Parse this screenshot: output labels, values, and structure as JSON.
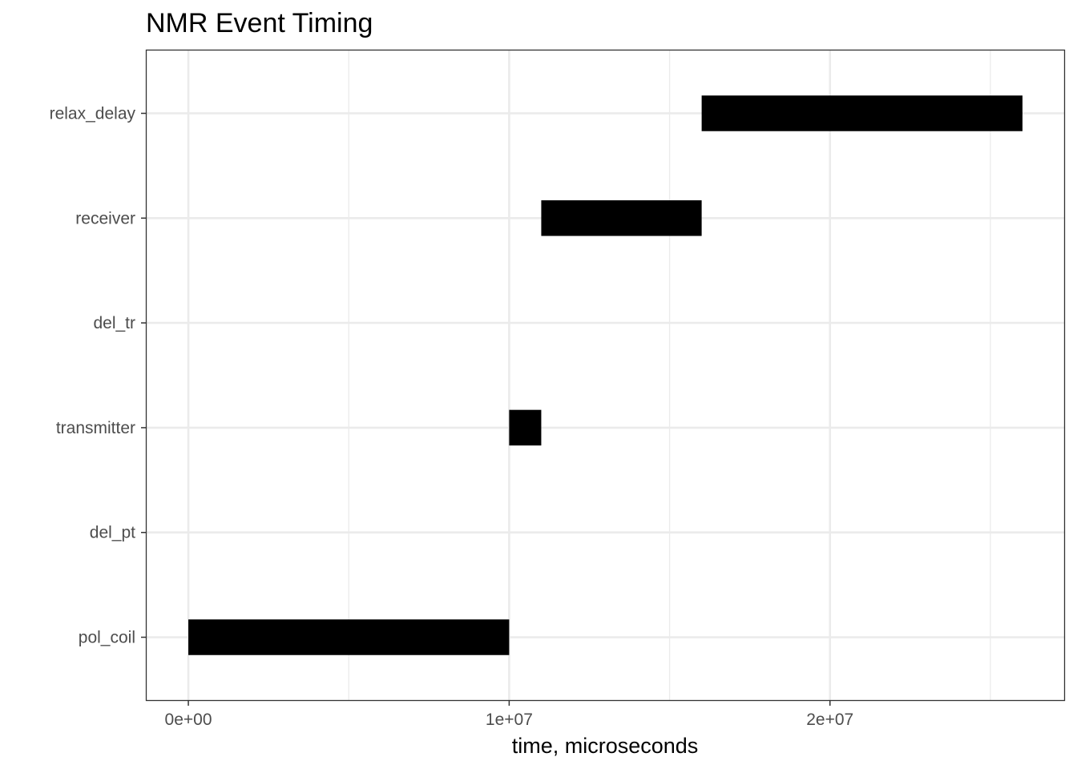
{
  "chart_data": {
    "type": "bar",
    "orientation": "horizontal",
    "title": "NMR Event Timing",
    "xlabel": "time, microseconds",
    "ylabel": "",
    "categories": [
      "pol_coil",
      "del_pt",
      "transmitter",
      "del_tr",
      "receiver",
      "relax_delay"
    ],
    "intervals": [
      {
        "category": "pol_coil",
        "start": 0,
        "end": 10000000
      },
      {
        "category": "del_pt",
        "start": 10000000,
        "end": 10000000
      },
      {
        "category": "transmitter",
        "start": 10000000,
        "end": 11000000
      },
      {
        "category": "del_tr",
        "start": 11000000,
        "end": 11000000
      },
      {
        "category": "receiver",
        "start": 11000000,
        "end": 16000000
      },
      {
        "category": "relax_delay",
        "start": 16000000,
        "end": 26000000
      }
    ],
    "xlim": [
      -1300000,
      27300000
    ],
    "xticks": [
      {
        "value": 0,
        "label": "0e+00"
      },
      {
        "value": 10000000,
        "label": "1e+07"
      },
      {
        "value": 20000000,
        "label": "2e+07"
      }
    ],
    "xminor": [
      5000000,
      15000000,
      25000000
    ],
    "grid": true,
    "legend": "none",
    "colors": {
      "bar": "#000000",
      "grid": "#ebebeb",
      "panel_border": "#333333",
      "tick": "#333333"
    }
  }
}
